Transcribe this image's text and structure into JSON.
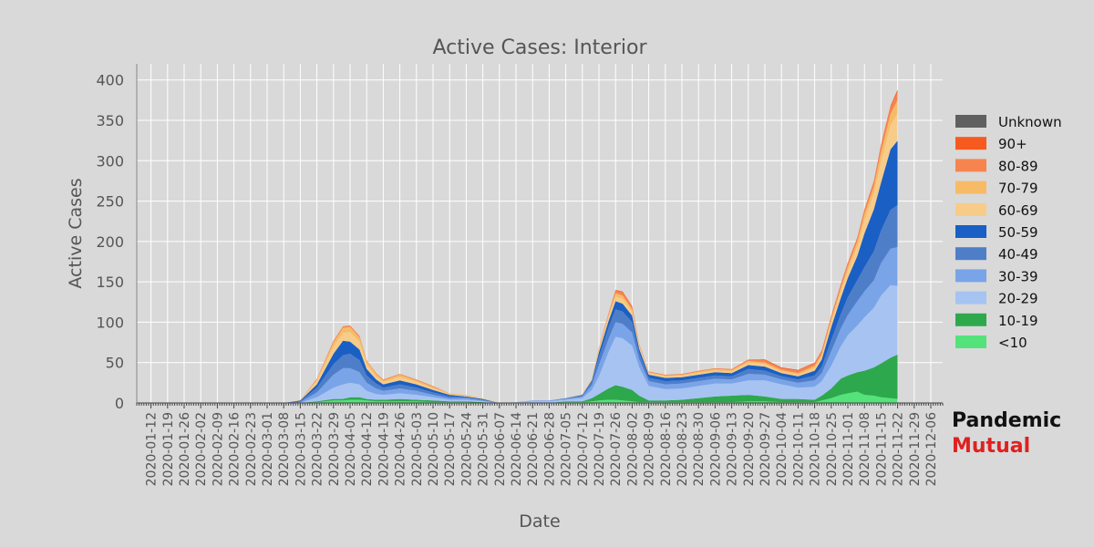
{
  "chart_data": {
    "type": "area",
    "title": "Active Cases: Interior",
    "xlabel": "Date",
    "ylabel": "Active Cases",
    "ylim": [
      0,
      420
    ],
    "yticks": [
      0,
      50,
      100,
      150,
      200,
      250,
      300,
      350,
      400
    ],
    "grid": true,
    "legend_position": "right",
    "x_tick_labels": [
      "2020-01-12",
      "2020-01-19",
      "2020-01-26",
      "2020-02-02",
      "2020-02-09",
      "2020-02-16",
      "2020-02-23",
      "2020-03-01",
      "2020-03-08",
      "2020-03-15",
      "2020-03-22",
      "2020-03-29",
      "2020-04-05",
      "2020-04-12",
      "2020-04-19",
      "2020-04-26",
      "2020-05-03",
      "2020-05-10",
      "2020-05-17",
      "2020-05-24",
      "2020-05-31",
      "2020-06-07",
      "2020-06-14",
      "2020-06-21",
      "2020-06-28",
      "2020-07-05",
      "2020-07-12",
      "2020-07-19",
      "2020-07-26",
      "2020-08-02",
      "2020-08-09",
      "2020-08-16",
      "2020-08-23",
      "2020-08-30",
      "2020-09-06",
      "2020-09-13",
      "2020-09-20",
      "2020-09-27",
      "2020-10-04",
      "2020-10-11",
      "2020-10-18",
      "2020-10-25",
      "2020-11-01",
      "2020-11-08",
      "2020-11-15",
      "2020-11-22",
      "2020-11-29",
      "2020-12-06"
    ],
    "x": [
      "2020-03-08",
      "2020-03-15",
      "2020-03-22",
      "2020-03-29",
      "2020-04-02",
      "2020-04-05",
      "2020-04-09",
      "2020-04-12",
      "2020-04-16",
      "2020-04-19",
      "2020-04-26",
      "2020-05-03",
      "2020-05-10",
      "2020-05-17",
      "2020-05-24",
      "2020-05-31",
      "2020-06-07",
      "2020-06-14",
      "2020-06-21",
      "2020-06-28",
      "2020-07-05",
      "2020-07-12",
      "2020-07-16",
      "2020-07-19",
      "2020-07-23",
      "2020-07-26",
      "2020-07-29",
      "2020-08-02",
      "2020-08-05",
      "2020-08-09",
      "2020-08-16",
      "2020-08-23",
      "2020-08-30",
      "2020-09-06",
      "2020-09-13",
      "2020-09-20",
      "2020-09-27",
      "2020-10-04",
      "2020-10-11",
      "2020-10-18",
      "2020-10-21",
      "2020-10-25",
      "2020-10-29",
      "2020-11-01",
      "2020-11-05",
      "2020-11-08",
      "2020-11-12",
      "2020-11-15",
      "2020-11-19",
      "2020-11-22"
    ],
    "series": [
      {
        "name": "<10",
        "color": "#54e37a",
        "values": [
          0,
          0,
          1,
          3,
          3,
          4,
          4,
          3,
          2,
          2,
          2,
          2,
          1,
          1,
          1,
          0,
          0,
          0,
          0,
          0,
          1,
          1,
          2,
          3,
          4,
          4,
          3,
          2,
          1,
          1,
          1,
          1,
          1,
          1,
          1,
          2,
          2,
          1,
          1,
          1,
          3,
          6,
          10,
          12,
          14,
          10,
          9,
          7,
          6,
          5
        ]
      },
      {
        "name": "10-19",
        "color": "#2ea84c",
        "values": [
          0,
          0,
          1,
          2,
          2,
          3,
          3,
          2,
          2,
          2,
          3,
          2,
          2,
          1,
          1,
          1,
          0,
          0,
          0,
          0,
          1,
          1,
          4,
          8,
          14,
          18,
          17,
          14,
          8,
          2,
          2,
          3,
          5,
          7,
          8,
          8,
          6,
          4,
          4,
          3,
          6,
          12,
          20,
          22,
          24,
          30,
          35,
          42,
          50,
          55
        ]
      },
      {
        "name": "20-29",
        "color": "#a6c3f2",
        "values": [
          0,
          0,
          5,
          14,
          18,
          18,
          16,
          10,
          7,
          6,
          7,
          6,
          4,
          2,
          2,
          1,
          0,
          1,
          2,
          2,
          2,
          4,
          10,
          22,
          45,
          60,
          60,
          55,
          35,
          18,
          14,
          14,
          15,
          16,
          15,
          18,
          20,
          18,
          14,
          16,
          18,
          28,
          40,
          50,
          58,
          66,
          74,
          84,
          90,
          85
        ]
      },
      {
        "name": "30-39",
        "color": "#7aa4e8",
        "values": [
          0,
          1,
          6,
          16,
          20,
          18,
          15,
          10,
          7,
          5,
          6,
          5,
          3,
          2,
          2,
          1,
          0,
          0,
          1,
          1,
          1,
          2,
          6,
          14,
          16,
          18,
          18,
          16,
          10,
          6,
          6,
          6,
          6,
          6,
          5,
          8,
          7,
          6,
          6,
          8,
          10,
          18,
          22,
          25,
          30,
          32,
          34,
          40,
          45,
          48
        ]
      },
      {
        "name": "40-49",
        "color": "#4f7ec9",
        "values": [
          0,
          1,
          6,
          13,
          16,
          18,
          15,
          9,
          6,
          4,
          5,
          4,
          3,
          2,
          1,
          1,
          0,
          0,
          0,
          0,
          1,
          1,
          4,
          10,
          14,
          16,
          15,
          13,
          8,
          4,
          4,
          4,
          4,
          4,
          4,
          6,
          5,
          4,
          4,
          6,
          8,
          14,
          18,
          22,
          26,
          30,
          36,
          40,
          48,
          52
        ]
      },
      {
        "name": "50-59",
        "color": "#1a5fc4",
        "values": [
          0,
          1,
          4,
          13,
          18,
          15,
          13,
          8,
          5,
          4,
          5,
          4,
          3,
          2,
          1,
          1,
          0,
          0,
          0,
          0,
          0,
          1,
          2,
          6,
          8,
          10,
          10,
          8,
          5,
          4,
          4,
          4,
          4,
          4,
          4,
          5,
          5,
          4,
          4,
          6,
          9,
          16,
          20,
          24,
          30,
          42,
          52,
          60,
          75,
          80
        ]
      },
      {
        "name": "60-69",
        "color": "#f7cc89",
        "values": [
          0,
          1,
          4,
          9,
          10,
          12,
          10,
          6,
          4,
          3,
          4,
          3,
          2,
          1,
          1,
          1,
          0,
          0,
          0,
          0,
          0,
          1,
          1,
          3,
          5,
          6,
          6,
          5,
          3,
          2,
          2,
          2,
          2,
          2,
          2,
          3,
          3,
          2,
          2,
          3,
          4,
          6,
          8,
          9,
          12,
          16,
          20,
          26,
          30,
          34
        ]
      },
      {
        "name": "70-79",
        "color": "#f7bb66",
        "values": [
          0,
          0,
          2,
          5,
          6,
          6,
          5,
          4,
          3,
          2,
          3,
          2,
          2,
          1,
          1,
          0,
          0,
          0,
          0,
          0,
          0,
          0,
          1,
          2,
          3,
          4,
          4,
          3,
          2,
          1,
          1,
          1,
          2,
          2,
          2,
          2,
          2,
          2,
          2,
          3,
          3,
          4,
          4,
          5,
          6,
          8,
          8,
          12,
          14,
          16
        ]
      },
      {
        "name": "80-89",
        "color": "#f7844f",
        "values": [
          0,
          0,
          1,
          2,
          2,
          2,
          2,
          1,
          1,
          1,
          1,
          1,
          1,
          0,
          0,
          0,
          0,
          0,
          0,
          0,
          0,
          0,
          0,
          1,
          2,
          3,
          4,
          3,
          1,
          1,
          1,
          1,
          1,
          1,
          1,
          2,
          3,
          2,
          3,
          3,
          3,
          3,
          4,
          4,
          4,
          5,
          6,
          7,
          8,
          10
        ]
      },
      {
        "name": "90+",
        "color": "#f75a1f",
        "values": [
          0,
          0,
          0,
          0,
          0,
          0,
          0,
          0,
          0,
          0,
          0,
          0,
          0,
          0,
          0,
          0,
          0,
          0,
          0,
          0,
          0,
          0,
          0,
          0,
          0,
          1,
          1,
          1,
          0,
          0,
          0,
          0,
          0,
          0,
          0,
          0,
          1,
          1,
          1,
          1,
          1,
          1,
          1,
          1,
          1,
          1,
          1,
          2,
          2,
          3
        ]
      },
      {
        "name": "Unknown",
        "color": "#606060",
        "values": [
          0,
          0,
          0,
          0,
          0,
          0,
          0,
          0,
          0,
          0,
          0,
          0,
          0,
          0,
          0,
          0,
          0,
          0,
          0,
          0,
          0,
          0,
          0,
          0,
          0,
          0,
          0,
          0,
          0,
          0,
          0,
          0,
          0,
          0,
          0,
          0,
          0,
          0,
          0,
          0,
          0,
          0,
          0,
          0,
          0,
          0,
          0,
          0,
          0,
          0
        ]
      }
    ],
    "legend_order": [
      "Unknown",
      "90+",
      "80-89",
      "70-79",
      "60-69",
      "50-59",
      "40-49",
      "30-39",
      "20-29",
      "10-19",
      "<10"
    ]
  },
  "brand": {
    "line1": "Pandemic",
    "line2": "Mutual"
  }
}
